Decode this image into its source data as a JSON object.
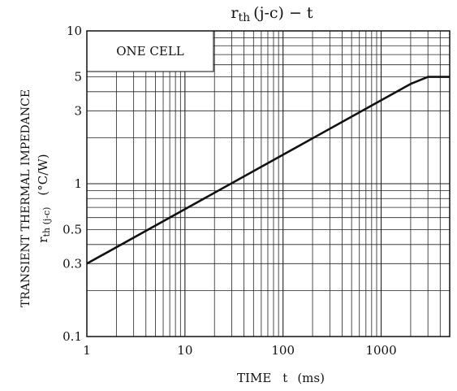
{
  "chart_data": {
    "type": "line",
    "title": {
      "main": "r",
      "sub": "th",
      "rest": "(j-c)  −  t"
    },
    "xlabel": {
      "prefix": "TIME",
      "var": "t",
      "unit": "(ms)"
    },
    "ylabel": {
      "line1": "TRANSIENT THERMAL IMPEDANCE",
      "sym": "r",
      "sub": "th (j-c)",
      "unit": "(°C/W)"
    },
    "annotation": "ONE CELL",
    "xscale": "log",
    "yscale": "log",
    "xlim": [
      1,
      5000
    ],
    "ylim": [
      0.1,
      10
    ],
    "xticks": [
      {
        "value": 1,
        "label": "1"
      },
      {
        "value": 10,
        "label": "10"
      },
      {
        "value": 100,
        "label": "100"
      },
      {
        "value": 1000,
        "label": "1000"
      }
    ],
    "yticks": [
      {
        "value": 0.1,
        "label": "0.1"
      },
      {
        "value": 0.3,
        "label": "0.3"
      },
      {
        "value": 0.5,
        "label": "0.5"
      },
      {
        "value": 1,
        "label": "1"
      },
      {
        "value": 3,
        "label": "3"
      },
      {
        "value": 5,
        "label": "5"
      },
      {
        "value": 10,
        "label": "10"
      }
    ],
    "grid": true,
    "series": [
      {
        "x": [
          1,
          2000,
          3000,
          5000
        ],
        "y": [
          0.3,
          4.5,
          5,
          5
        ]
      }
    ],
    "colors": {
      "line": "#111111",
      "grid": "#222222",
      "background": "#ffffff"
    }
  }
}
